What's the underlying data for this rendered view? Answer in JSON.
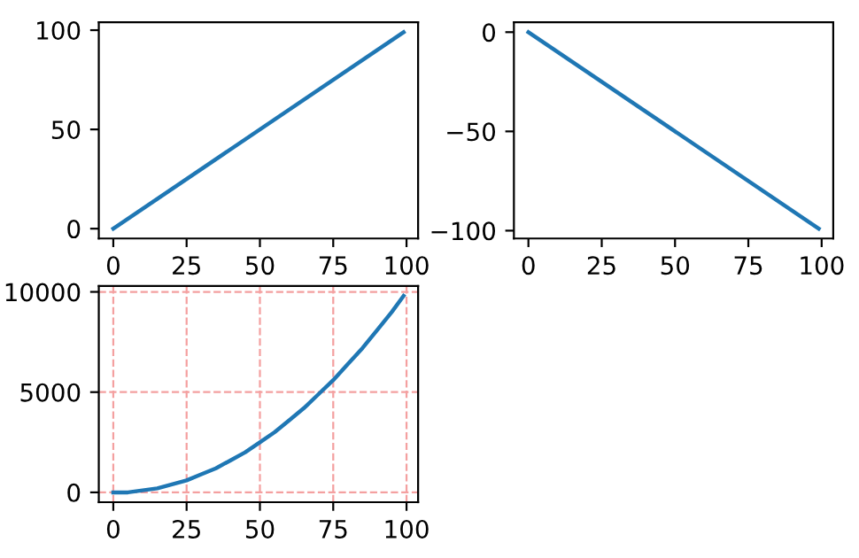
{
  "chart_data": [
    {
      "type": "line",
      "x": [
        0,
        99
      ],
      "series": [
        {
          "color": "#1f77b4",
          "values": [
            0,
            99
          ]
        }
      ],
      "xlim": [
        -4.95,
        103.95
      ],
      "ylim": [
        -4.95,
        103.95
      ],
      "xticks": [
        0,
        25,
        50,
        75,
        100
      ],
      "yticks": [
        0,
        50,
        100
      ],
      "grid": false,
      "legend": false
    },
    {
      "type": "line",
      "x": [
        0,
        99
      ],
      "series": [
        {
          "color": "#1f77b4",
          "values": [
            0,
            -99
          ]
        }
      ],
      "xlim": [
        -4.95,
        103.95
      ],
      "ylim": [
        -103.95,
        4.95
      ],
      "xticks": [
        0,
        25,
        50,
        75,
        100
      ],
      "yticks": [
        {
          "value": -100,
          "label": "−100"
        },
        {
          "value": -50,
          "label": "−50"
        },
        0
      ],
      "grid": false,
      "legend": false
    },
    {
      "type": "line",
      "x": [
        0,
        5,
        10,
        15,
        20,
        25,
        30,
        35,
        40,
        45,
        50,
        55,
        60,
        65,
        70,
        75,
        80,
        85,
        90,
        95,
        99
      ],
      "series": [
        {
          "color": "#1f77b4",
          "values": [
            0,
            0,
            100,
            200,
            400,
            600,
            900,
            1200,
            1600,
            2000,
            2500,
            3000,
            3600,
            4200,
            4900,
            5600,
            6400,
            7200,
            8100,
            9000,
            9800
          ]
        }
      ],
      "xlim": [
        -4.95,
        103.95
      ],
      "ylim": [
        -490,
        10291
      ],
      "xticks": [
        0,
        25,
        50,
        75,
        100
      ],
      "yticks": [
        0,
        5000,
        10000
      ],
      "grid": true,
      "legend": false
    }
  ]
}
